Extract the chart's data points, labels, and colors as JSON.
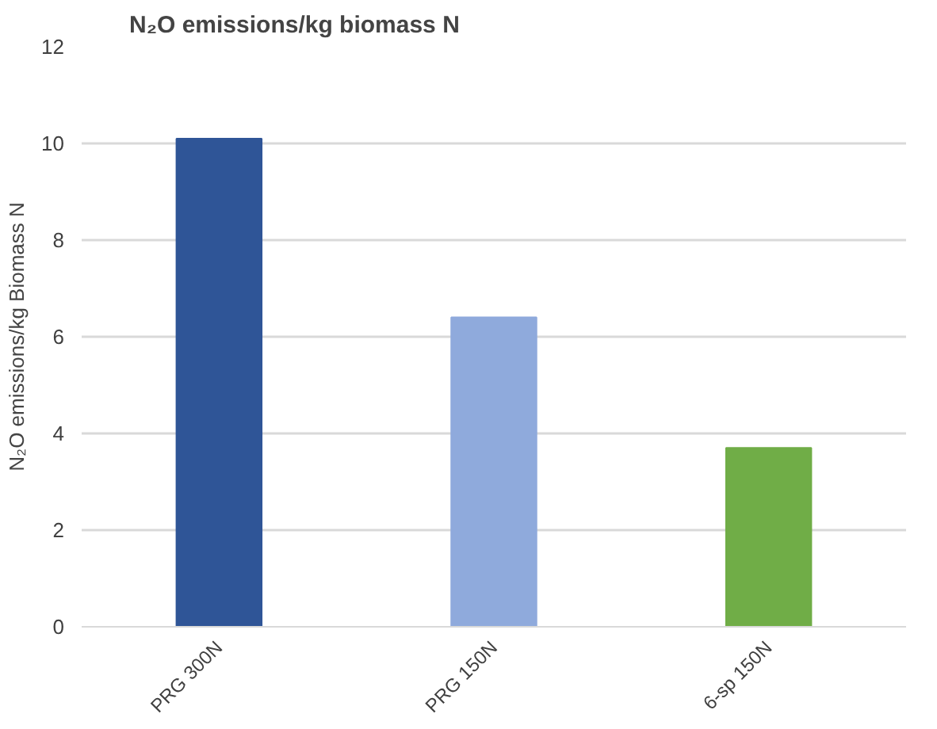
{
  "chart_data": {
    "type": "bar",
    "title": "N₂O emissions/kg biomass N",
    "ylabel": "N₂O emissions/kg Biomass N",
    "categories": [
      "PRG 300N",
      "PRG 150N",
      "6-sp 150N"
    ],
    "values": [
      10.1,
      6.4,
      3.7
    ],
    "colors": [
      "#2f5597",
      "#8faadc",
      "#70ad47"
    ],
    "ylim": [
      0,
      12
    ],
    "yticks": [
      0,
      2,
      4,
      6,
      8,
      10,
      12
    ],
    "grid": "y"
  }
}
